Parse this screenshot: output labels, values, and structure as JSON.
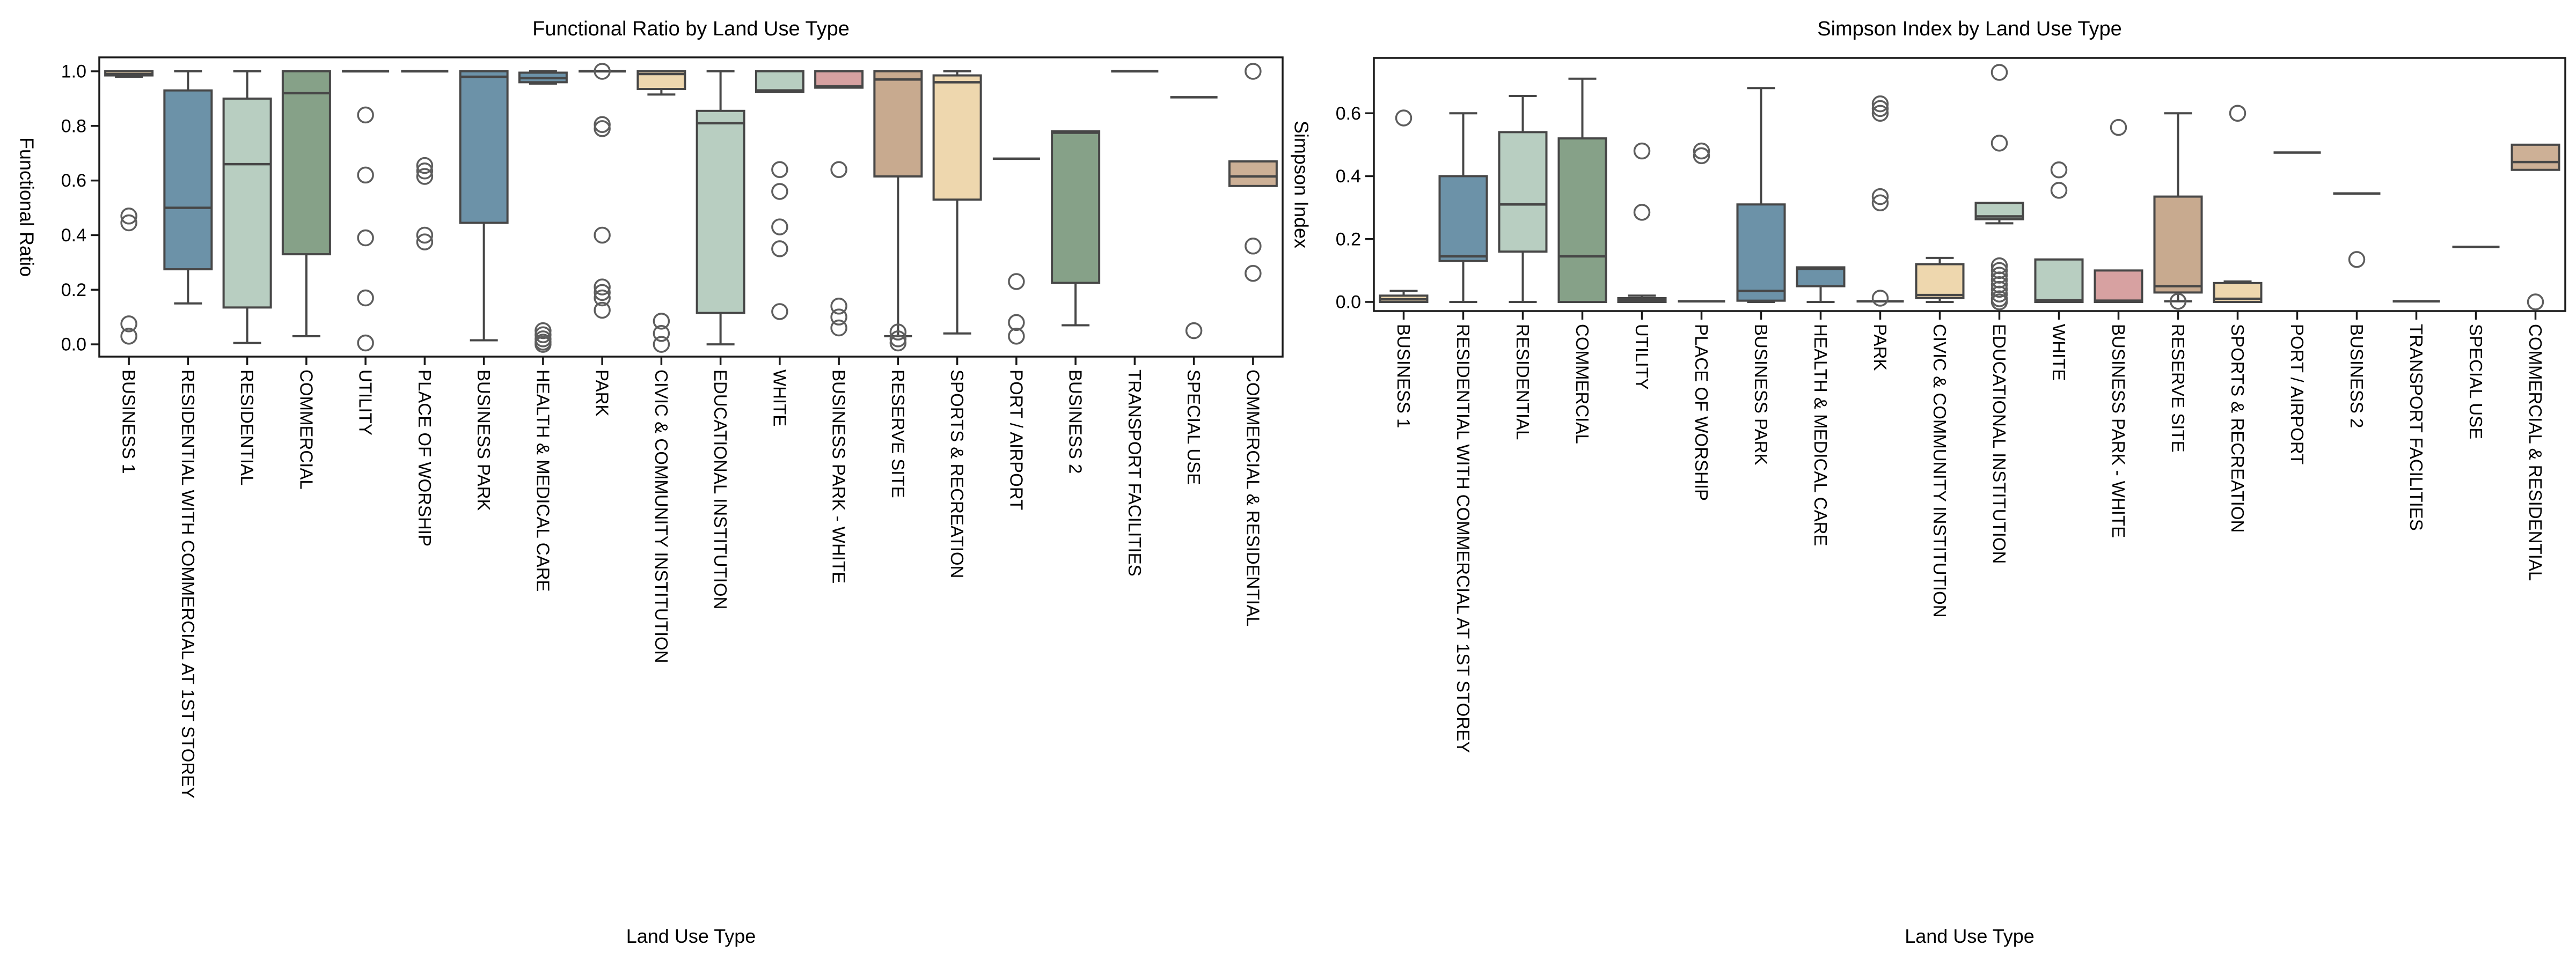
{
  "palette": {
    "wheat": "#eed7ae",
    "blue": "#6c92a8",
    "palegreen": "#b8cec1",
    "green": "#86a188",
    "pink": "#d7a1a1",
    "brown": "#c8aa8f",
    "tan": "#cdb096",
    "box_edge": "#474747",
    "flier_edge": "#5d5d5d",
    "frame": "#1a1a1a",
    "background": "#ffffff"
  },
  "chart_data": [
    {
      "type": "box",
      "title": "Functional Ratio by Land Use Type",
      "xlabel": "Land Use Type",
      "ylabel": "Functional Ratio",
      "ylim": [
        -0.045,
        1.051
      ],
      "yticks": [
        0.0,
        0.2,
        0.4,
        0.6,
        0.8,
        1.0
      ],
      "ytick_labels": [
        "0.0",
        "0.2",
        "0.4",
        "0.6",
        "0.8",
        "1.0"
      ],
      "grid": false,
      "legend": null,
      "categories": [
        "BUSINESS 1",
        "RESIDENTIAL WITH COMMERCIAL AT 1ST STOREY",
        "RESIDENTIAL",
        "COMMERCIAL",
        "UTILITY",
        "PLACE OF WORSHIP",
        "BUSINESS PARK",
        "HEALTH & MEDICAL CARE",
        "PARK",
        "CIVIC & COMMUNITY INSTITUTION",
        "EDUCATIONAL INSTITUTION",
        "WHITE",
        "BUSINESS PARK - WHITE",
        "RESERVE SITE",
        "SPORTS & RECREATION",
        "PORT / AIRPORT",
        "BUSINESS 2",
        "TRANSPORT FACILITIES",
        "SPECIAL USE",
        "COMMERCIAL & RESIDENTIAL"
      ],
      "boxes": [
        {
          "label": "BUSINESS 1",
          "color_key": "wheat",
          "whislo": 0.98,
          "q1": 0.985,
          "med": 0.99,
          "q3": 1.0,
          "whishi": 1.0,
          "fliers": [
            0.47,
            0.445,
            0.075,
            0.03
          ]
        },
        {
          "label": "RESIDENTIAL WITH COMMERCIAL AT 1ST STOREY",
          "color_key": "blue",
          "whislo": 0.15,
          "q1": 0.275,
          "med": 0.5,
          "q3": 0.93,
          "whishi": 1.0,
          "fliers": []
        },
        {
          "label": "RESIDENTIAL",
          "color_key": "palegreen",
          "whislo": 0.005,
          "q1": 0.135,
          "med": 0.66,
          "q3": 0.9,
          "whishi": 1.0,
          "fliers": []
        },
        {
          "label": "COMMERCIAL",
          "color_key": "green",
          "whislo": 0.03,
          "q1": 0.33,
          "med": 0.92,
          "q3": 1.0,
          "whishi": 1.0,
          "fliers": []
        },
        {
          "label": "UTILITY",
          "color_key": "wheat",
          "whislo": 1.0,
          "q1": 1.0,
          "med": 1.0,
          "q3": 1.0,
          "whishi": 1.0,
          "fliers": [
            0.84,
            0.62,
            0.39,
            0.17,
            0.005
          ]
        },
        {
          "label": "PLACE OF WORSHIP",
          "color_key": "wheat",
          "whislo": 1.0,
          "q1": 1.0,
          "med": 1.0,
          "q3": 1.0,
          "whishi": 1.0,
          "fliers": [
            0.655,
            0.635,
            0.615,
            0.4,
            0.375
          ]
        },
        {
          "label": "BUSINESS PARK",
          "color_key": "blue",
          "whislo": 0.015,
          "q1": 0.445,
          "med": 0.98,
          "q3": 1.0,
          "whishi": 1.0,
          "fliers": []
        },
        {
          "label": "HEALTH & MEDICAL CARE",
          "color_key": "blue",
          "whislo": 0.955,
          "q1": 0.96,
          "med": 0.975,
          "q3": 0.995,
          "whishi": 1.0,
          "fliers": [
            0.05,
            0.035,
            0.02,
            0.008,
            0.0
          ]
        },
        {
          "label": "PARK",
          "color_key": "green",
          "whislo": 1.0,
          "q1": 1.0,
          "med": 1.0,
          "q3": 1.0,
          "whishi": 1.0,
          "fliers": [
            1.0,
            0.805,
            0.79,
            0.4,
            0.21,
            0.19,
            0.17,
            0.125
          ]
        },
        {
          "label": "CIVIC & COMMUNITY INSTITUTION",
          "color_key": "wheat",
          "whislo": 0.915,
          "q1": 0.935,
          "med": 0.99,
          "q3": 1.0,
          "whishi": 1.0,
          "fliers": [
            0.085,
            0.04,
            0.0
          ]
        },
        {
          "label": "EDUCATIONAL INSTITUTION",
          "color_key": "palegreen",
          "whislo": 0.0,
          "q1": 0.115,
          "med": 0.81,
          "q3": 0.855,
          "whishi": 1.0,
          "fliers": []
        },
        {
          "label": "WHITE",
          "color_key": "palegreen",
          "whislo": 0.925,
          "q1": 0.925,
          "med": 0.93,
          "q3": 1.0,
          "whishi": 1.0,
          "fliers": [
            0.64,
            0.56,
            0.43,
            0.35,
            0.12
          ]
        },
        {
          "label": "BUSINESS PARK - WHITE",
          "color_key": "pink",
          "whislo": 0.94,
          "q1": 0.94,
          "med": 0.945,
          "q3": 1.0,
          "whishi": 1.0,
          "fliers": [
            0.64,
            0.14,
            0.1,
            0.06
          ]
        },
        {
          "label": "RESERVE SITE",
          "color_key": "brown",
          "whislo": 0.03,
          "q1": 0.615,
          "med": 0.97,
          "q3": 1.0,
          "whishi": 1.0,
          "fliers": [
            0.045,
            0.02,
            0.005
          ]
        },
        {
          "label": "SPORTS & RECREATION",
          "color_key": "wheat",
          "whislo": 0.04,
          "q1": 0.53,
          "med": 0.96,
          "q3": 0.985,
          "whishi": 1.0,
          "fliers": []
        },
        {
          "label": "PORT / AIRPORT",
          "color_key": "green",
          "whislo": 0.68,
          "q1": 0.68,
          "med": 0.68,
          "q3": 0.68,
          "whishi": 0.68,
          "fliers": [
            0.23,
            0.08,
            0.03
          ]
        },
        {
          "label": "BUSINESS 2",
          "color_key": "green",
          "whislo": 0.07,
          "q1": 0.225,
          "med": 0.775,
          "q3": 0.78,
          "whishi": 0.78,
          "fliers": []
        },
        {
          "label": "TRANSPORT FACILITIES",
          "color_key": "wheat",
          "whislo": 1.0,
          "q1": 1.0,
          "med": 1.0,
          "q3": 1.0,
          "whishi": 1.0,
          "fliers": []
        },
        {
          "label": "SPECIAL USE",
          "color_key": "wheat",
          "whislo": 0.905,
          "q1": 0.905,
          "med": 0.905,
          "q3": 0.905,
          "whishi": 0.905,
          "fliers": [
            0.05
          ]
        },
        {
          "label": "COMMERCIAL & RESIDENTIAL",
          "color_key": "tan",
          "whislo": 0.58,
          "q1": 0.58,
          "med": 0.615,
          "q3": 0.67,
          "whishi": 0.67,
          "fliers": [
            1.0,
            0.36,
            0.26
          ]
        }
      ]
    },
    {
      "type": "box",
      "title": "Simpson Index by Land Use Type",
      "xlabel": "Land Use Type",
      "ylabel": "Simpson Index",
      "ylim": [
        -0.029,
        0.776
      ],
      "yticks": [
        0.0,
        0.2,
        0.4,
        0.6
      ],
      "ytick_labels": [
        "0.0",
        "0.2",
        "0.4",
        "0.6"
      ],
      "grid": false,
      "legend": null,
      "categories": [
        "BUSINESS 1",
        "RESIDENTIAL WITH COMMERCIAL AT 1ST STOREY",
        "RESIDENTIAL",
        "COMMERCIAL",
        "UTILITY",
        "PLACE OF WORSHIP",
        "BUSINESS PARK",
        "HEALTH & MEDICAL CARE",
        "PARK",
        "CIVIC & COMMUNITY INSTITUTION",
        "EDUCATIONAL INSTITUTION",
        "WHITE",
        "BUSINESS PARK - WHITE",
        "RESERVE SITE",
        "SPORTS & RECREATION",
        "PORT / AIRPORT",
        "BUSINESS 2",
        "TRANSPORT FACILITIES",
        "SPECIAL USE",
        "COMMERCIAL & RESIDENTIAL"
      ],
      "boxes": [
        {
          "label": "BUSINESS 1",
          "color_key": "wheat",
          "whislo": 0.0,
          "q1": 0.0,
          "med": 0.008,
          "q3": 0.02,
          "whishi": 0.035,
          "fliers": [
            0.585
          ]
        },
        {
          "label": "RESIDENTIAL WITH COMMERCIAL AT 1ST STOREY",
          "color_key": "blue",
          "whislo": 0.0,
          "q1": 0.13,
          "med": 0.145,
          "q3": 0.4,
          "whishi": 0.6,
          "fliers": []
        },
        {
          "label": "RESIDENTIAL",
          "color_key": "palegreen",
          "whislo": 0.0,
          "q1": 0.16,
          "med": 0.31,
          "q3": 0.54,
          "whishi": 0.655,
          "fliers": []
        },
        {
          "label": "COMMERCIAL",
          "color_key": "green",
          "whislo": 0.0,
          "q1": 0.0,
          "med": 0.145,
          "q3": 0.52,
          "whishi": 0.71,
          "fliers": []
        },
        {
          "label": "UTILITY",
          "color_key": "wheat",
          "whislo": 0.0,
          "q1": 0.0,
          "med": 0.005,
          "q3": 0.012,
          "whishi": 0.02,
          "fliers": [
            0.48,
            0.285
          ]
        },
        {
          "label": "PLACE OF WORSHIP",
          "color_key": "wheat",
          "whislo": 0.002,
          "q1": 0.002,
          "med": 0.002,
          "q3": 0.002,
          "whishi": 0.002,
          "fliers": [
            0.48,
            0.465
          ]
        },
        {
          "label": "BUSINESS PARK",
          "color_key": "blue",
          "whislo": 0.0,
          "q1": 0.004,
          "med": 0.035,
          "q3": 0.31,
          "whishi": 0.68,
          "fliers": []
        },
        {
          "label": "HEALTH & MEDICAL CARE",
          "color_key": "blue",
          "whislo": 0.0,
          "q1": 0.05,
          "med": 0.105,
          "q3": 0.11,
          "whishi": 0.11,
          "fliers": []
        },
        {
          "label": "PARK",
          "color_key": "green",
          "whislo": 0.002,
          "q1": 0.002,
          "med": 0.002,
          "q3": 0.002,
          "whishi": 0.002,
          "fliers": [
            0.63,
            0.615,
            0.6,
            0.335,
            0.315,
            0.012
          ]
        },
        {
          "label": "CIVIC & COMMUNITY INSTITUTION",
          "color_key": "wheat",
          "whislo": 0.0,
          "q1": 0.012,
          "med": 0.022,
          "q3": 0.12,
          "whishi": 0.14,
          "fliers": []
        },
        {
          "label": "EDUCATIONAL INSTITUTION",
          "color_key": "palegreen",
          "whislo": 0.25,
          "q1": 0.263,
          "med": 0.272,
          "q3": 0.315,
          "whishi": 0.315,
          "fliers": [
            0.73,
            0.505,
            0.115,
            0.1,
            0.085,
            0.07,
            0.055,
            0.04,
            0.025,
            0.01,
            0.0
          ]
        },
        {
          "label": "WHITE",
          "color_key": "palegreen",
          "whislo": 0.0,
          "q1": 0.0,
          "med": 0.005,
          "q3": 0.135,
          "whishi": 0.135,
          "fliers": [
            0.42,
            0.355
          ]
        },
        {
          "label": "BUSINESS PARK - WHITE",
          "color_key": "pink",
          "whislo": 0.0,
          "q1": 0.0,
          "med": 0.004,
          "q3": 0.1,
          "whishi": 0.1,
          "fliers": [
            0.555
          ]
        },
        {
          "label": "RESERVE SITE",
          "color_key": "brown",
          "whislo": 0.002,
          "q1": 0.03,
          "med": 0.05,
          "q3": 0.335,
          "whishi": 0.6,
          "fliers": [
            0.002
          ]
        },
        {
          "label": "SPORTS & RECREATION",
          "color_key": "wheat",
          "whislo": 0.0,
          "q1": 0.0,
          "med": 0.01,
          "q3": 0.06,
          "whishi": 0.065,
          "fliers": [
            0.6
          ]
        },
        {
          "label": "PORT / AIRPORT",
          "color_key": "green",
          "whislo": 0.475,
          "q1": 0.475,
          "med": 0.475,
          "q3": 0.475,
          "whishi": 0.475,
          "fliers": []
        },
        {
          "label": "BUSINESS 2",
          "color_key": "green",
          "whislo": 0.345,
          "q1": 0.345,
          "med": 0.345,
          "q3": 0.345,
          "whishi": 0.345,
          "fliers": [
            0.135
          ]
        },
        {
          "label": "TRANSPORT FACILITIES",
          "color_key": "wheat",
          "whislo": 0.002,
          "q1": 0.002,
          "med": 0.002,
          "q3": 0.002,
          "whishi": 0.002,
          "fliers": []
        },
        {
          "label": "SPECIAL USE",
          "color_key": "wheat",
          "whislo": 0.175,
          "q1": 0.175,
          "med": 0.175,
          "q3": 0.175,
          "whishi": 0.175,
          "fliers": []
        },
        {
          "label": "COMMERCIAL & RESIDENTIAL",
          "color_key": "tan",
          "whislo": 0.42,
          "q1": 0.42,
          "med": 0.445,
          "q3": 0.5,
          "whishi": 0.5,
          "fliers": [
            0.0
          ]
        }
      ]
    }
  ]
}
